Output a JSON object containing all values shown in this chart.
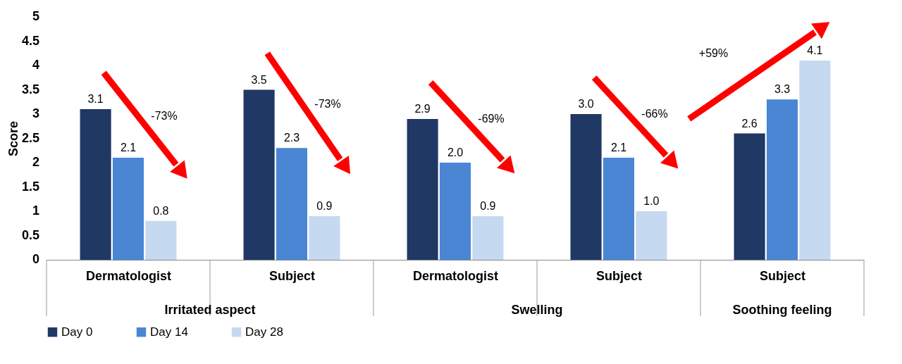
{
  "chart_data": {
    "type": "bar",
    "ylabel": "Score",
    "categories": [
      "Dermatologist",
      "Subject",
      "Dermatologist",
      "Subject",
      "Subject"
    ],
    "series": [
      {
        "name": "Day 0",
        "color": "#1f3864",
        "values": [
          3.1,
          3.5,
          2.9,
          3.0,
          2.6
        ],
        "value_labels": [
          "3.1",
          "3.5",
          "2.9",
          "3.0",
          "2.6"
        ]
      },
      {
        "name": "Day 14",
        "color": "#4a86d4",
        "values": [
          2.1,
          2.3,
          2.0,
          2.1,
          3.3
        ],
        "value_labels": [
          "2.1",
          "2.3",
          "2.0",
          "2.1",
          "3.3"
        ]
      },
      {
        "name": "Day 28",
        "color": "#c5d9f1",
        "values": [
          0.8,
          0.9,
          0.9,
          1.0,
          4.1
        ],
        "value_labels": [
          "0.8",
          "0.9",
          "0.9",
          "1.0",
          "4.1"
        ]
      }
    ],
    "ylim": [
      0,
      5
    ],
    "yticks": [
      0,
      0.5,
      1,
      1.5,
      2,
      2.5,
      3,
      3.5,
      4,
      4.5,
      5
    ],
    "grid": false,
    "legend": "bottom",
    "annotations": [
      "Irritated aspect",
      "Swelling",
      "Soothing feeling",
      "-73%",
      "-73%",
      "-69%",
      "-66%",
      "+59%"
    ]
  }
}
